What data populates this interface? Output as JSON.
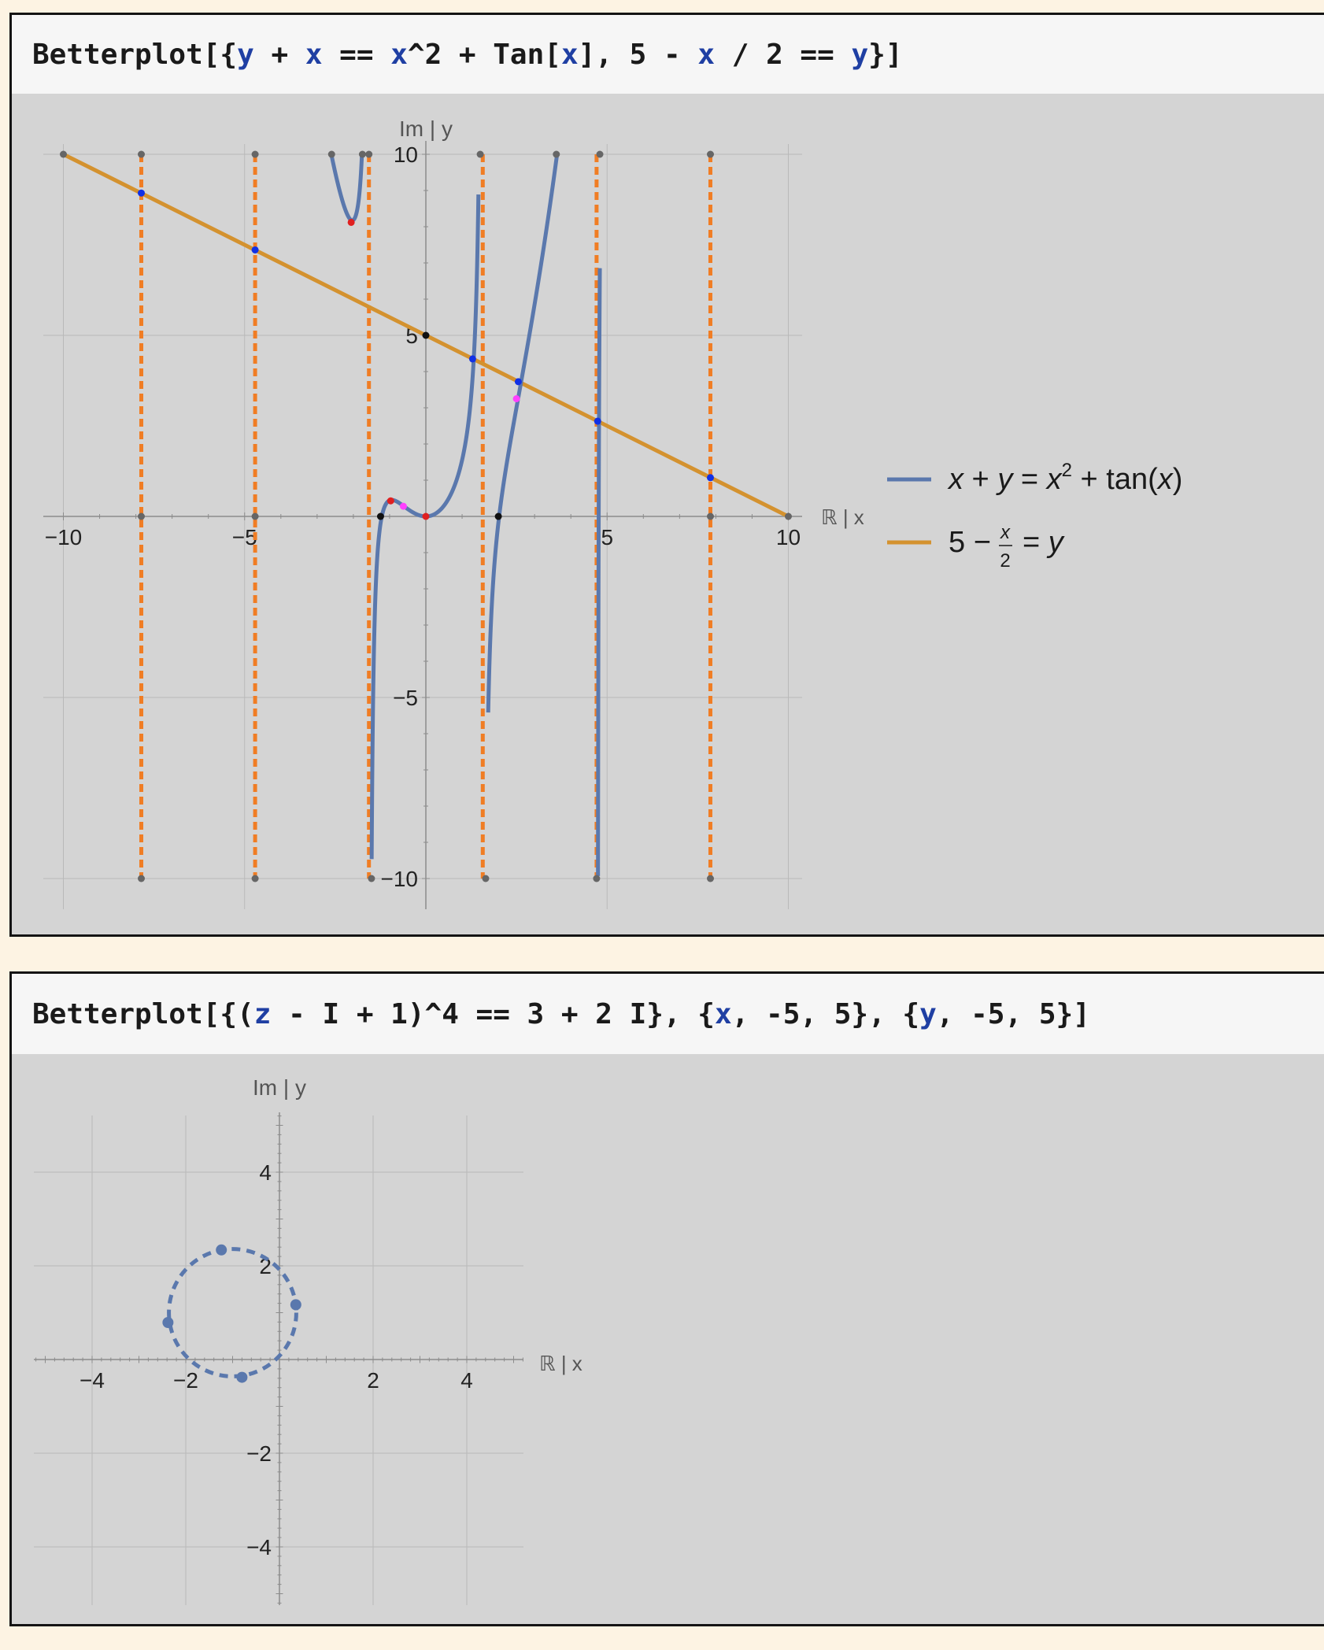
{
  "cells": [
    {
      "input_tokens": [
        {
          "t": "Betterplot[{",
          "c": "k"
        },
        {
          "t": "y",
          "c": "v"
        },
        {
          "t": " + ",
          "c": "k"
        },
        {
          "t": "x",
          "c": "v"
        },
        {
          "t": " == ",
          "c": "k"
        },
        {
          "t": "x",
          "c": "v"
        },
        {
          "t": "^2 + Tan[",
          "c": "k"
        },
        {
          "t": "x",
          "c": "v"
        },
        {
          "t": "], 5 - ",
          "c": "k"
        },
        {
          "t": "x",
          "c": "v"
        },
        {
          "t": " / 2 == ",
          "c": "k"
        },
        {
          "t": "y",
          "c": "v"
        },
        {
          "t": "}]",
          "c": "k"
        }
      ]
    },
    {
      "input_tokens": [
        {
          "t": "Betterplot[{(",
          "c": "k"
        },
        {
          "t": "z",
          "c": "v"
        },
        {
          "t": " - I + 1)^4 == 3 + 2 I}, {",
          "c": "k"
        },
        {
          "t": "x",
          "c": "v"
        },
        {
          "t": ", -5, 5}, {",
          "c": "k"
        },
        {
          "t": "y",
          "c": "v"
        },
        {
          "t": ", -5, 5}]",
          "c": "k"
        }
      ]
    }
  ],
  "colors": {
    "blue_curve": "#5a78ad",
    "orange_line": "#d4922f",
    "asymptote": "#f07d24",
    "grid": "#b9b9b9",
    "axis": "#8c8c8c",
    "point_black": "#111111",
    "point_blue": "#1130e6",
    "point_red": "#e02020",
    "point_magenta": "#ff40ff",
    "point_gray": "#666666"
  },
  "chart_data": [
    {
      "type": "line",
      "xlabel": "ℝ | x",
      "ylabel": "Im | y",
      "xlim": [
        -10,
        10
      ],
      "ylim": [
        -10,
        10
      ],
      "xticks": [
        -10,
        -5,
        5,
        10
      ],
      "yticks": [
        -10,
        -5,
        5,
        10
      ],
      "grid": true,
      "legend_position": "right",
      "series": [
        {
          "name": "x + y = x² + tan(x)",
          "kind": "implicit",
          "color": "#5a78ad"
        },
        {
          "name": "5 − x/2 = y",
          "kind": "line",
          "points": [
            [
              -10,
              10
            ],
            [
              10,
              0
            ]
          ],
          "color": "#d4922f"
        }
      ],
      "asymptotes_x": [
        -7.85,
        -4.71,
        -1.57,
        1.57,
        4.71,
        7.85
      ],
      "points": [
        {
          "x": 0,
          "y": 5,
          "kind": "black"
        },
        {
          "x": -1.25,
          "y": 0,
          "kind": "black"
        },
        {
          "x": 2,
          "y": 0,
          "kind": "black"
        },
        {
          "x": 1.29,
          "y": 4.35,
          "kind": "blue"
        },
        {
          "x": 2.55,
          "y": 3.72,
          "kind": "blue"
        },
        {
          "x": 4.74,
          "y": 2.63,
          "kind": "blue"
        },
        {
          "x": -7.85,
          "y": 8.93,
          "kind": "blue"
        },
        {
          "x": -4.71,
          "y": 7.36,
          "kind": "blue"
        },
        {
          "x": 7.85,
          "y": 1.07,
          "kind": "blue"
        },
        {
          "x": -2.06,
          "y": 8.12,
          "kind": "red"
        },
        {
          "x": -0.97,
          "y": 0.43,
          "kind": "red"
        },
        {
          "x": 0,
          "y": 0,
          "kind": "red"
        },
        {
          "x": -0.62,
          "y": 0.28,
          "kind": "magenta"
        },
        {
          "x": 2.5,
          "y": 3.25,
          "kind": "magenta"
        },
        {
          "x": -10,
          "y": 10,
          "kind": "gray"
        },
        {
          "x": 10,
          "y": 0,
          "kind": "gray"
        },
        {
          "x": -2.6,
          "y": 10,
          "kind": "gray"
        },
        {
          "x": -1.75,
          "y": 10,
          "kind": "gray"
        },
        {
          "x": 1.5,
          "y": 10,
          "kind": "gray"
        },
        {
          "x": 3.6,
          "y": 10,
          "kind": "gray"
        },
        {
          "x": 4.8,
          "y": 10,
          "kind": "gray"
        },
        {
          "x": 1.65,
          "y": -10,
          "kind": "gray"
        },
        {
          "x": -1.5,
          "y": -10,
          "kind": "gray"
        },
        {
          "x": -7.85,
          "y": 10,
          "kind": "gray"
        },
        {
          "x": -4.71,
          "y": 10,
          "kind": "gray"
        },
        {
          "x": -1.57,
          "y": 10,
          "kind": "gray"
        },
        {
          "x": 7.85,
          "y": 10,
          "kind": "gray"
        },
        {
          "x": -7.85,
          "y": 0,
          "kind": "gray"
        },
        {
          "x": -4.71,
          "y": 0,
          "kind": "gray"
        },
        {
          "x": 7.85,
          "y": 0,
          "kind": "gray"
        },
        {
          "x": -7.85,
          "y": -10,
          "kind": "gray"
        },
        {
          "x": -4.71,
          "y": -10,
          "kind": "gray"
        },
        {
          "x": 4.71,
          "y": -10,
          "kind": "gray"
        },
        {
          "x": 7.85,
          "y": -10,
          "kind": "gray"
        }
      ]
    },
    {
      "type": "scatter",
      "xlabel": "ℝ | x",
      "ylabel": "Im | y",
      "xlim": [
        -5.2,
        5.2
      ],
      "ylim": [
        -5.2,
        5.2
      ],
      "xticks": [
        -4,
        -2,
        2,
        4
      ],
      "yticks": [
        -4,
        -2,
        2,
        4
      ],
      "grid": true,
      "circle": {
        "center": [
          -1,
          1
        ],
        "radius": 1.36,
        "style": "dashed"
      },
      "points": [
        {
          "x": 0.35,
          "y": 1.17
        },
        {
          "x": -1.24,
          "y": 2.34
        },
        {
          "x": -2.38,
          "y": 0.79
        },
        {
          "x": -0.8,
          "y": -0.38
        }
      ]
    }
  ]
}
